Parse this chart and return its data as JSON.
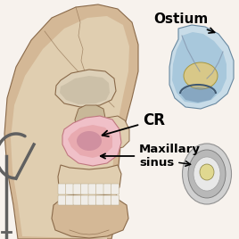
{
  "background_color": "#f7f2ed",
  "skull_color": "#d4b896",
  "skull_outline": "#8a6a4a",
  "skull_inner": "#c9a87c",
  "sinus_color": "#e8aab0",
  "sinus_dark": "#c07880",
  "sinus_highlight": "#f0c0c8",
  "bone_light": "#e0ceb0",
  "bone_mid": "#c8a870",
  "ostium_outer": "#c8dce8",
  "ostium_mid": "#a8c8dc",
  "ostium_inner_cream": "#d8c888",
  "ostium_dark_edge": "#6888a0",
  "sinus2_outer": "#d0d0d0",
  "sinus2_mid": "#b8b8b8",
  "sinus2_inner": "#e0d890",
  "label_CR": "CR",
  "label_maxillary": "Maxillary\nsinus",
  "label_ostium": "Ostium",
  "probe_color": "#606060",
  "tooth_color": "#f0ede8",
  "tooth_edge": "#c0b090"
}
